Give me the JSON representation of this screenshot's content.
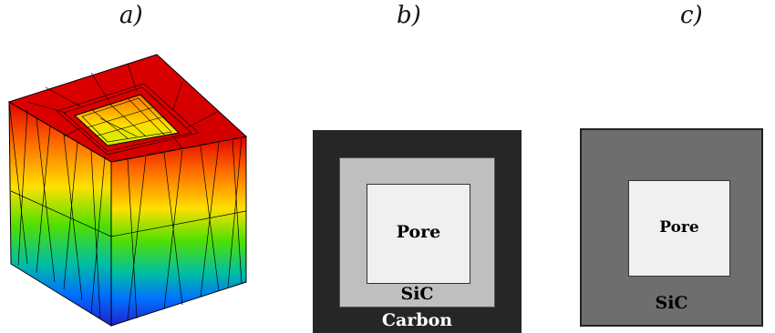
{
  "panels": {
    "a": {
      "label": "a)"
    },
    "b": {
      "label": "b)",
      "pore": "Pore",
      "sic": "SiC",
      "carbon": "Carbon"
    },
    "c": {
      "label": "c)",
      "pore": "Pore",
      "sic": "SiC"
    }
  },
  "colors": {
    "carbon": "#262626",
    "sic_b": "#bfbfbf",
    "pore": "#f0f0f0",
    "sic_c": "#6e6e6e"
  }
}
